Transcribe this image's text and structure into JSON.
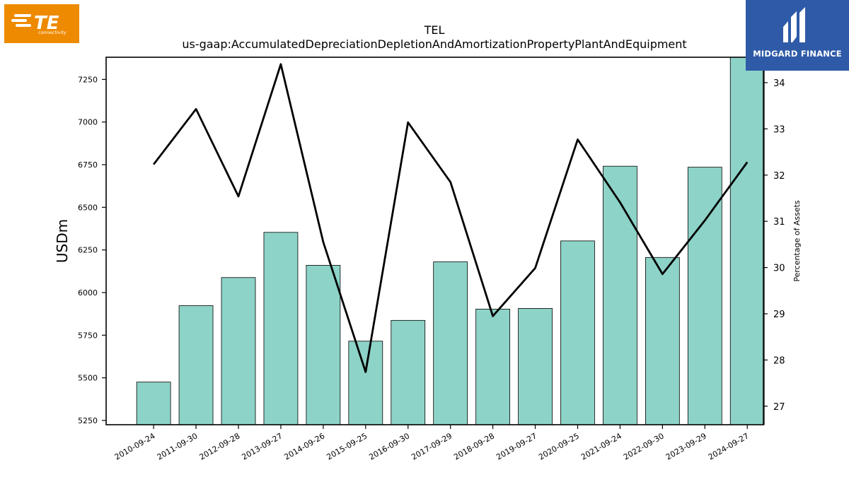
{
  "logos": {
    "left": {
      "text": "TE",
      "sub": "connectivity",
      "color": "#ee8a00"
    },
    "right": {
      "text": "MIDGARD FINANCE",
      "color": "#2f5aa8"
    }
  },
  "chart_data": {
    "type": "bar",
    "title": "TEL",
    "subtitle": "us-gaap:AccumulatedDepreciationDepletionAndAmortizationPropertyPlantAndEquipment",
    "ylabel": "USDm",
    "y2label": "Percentage of Assets",
    "categories": [
      "2010-09-24",
      "2011-09-30",
      "2012-09-28",
      "2013-09-27",
      "2014-09-26",
      "2015-09-25",
      "2016-09-30",
      "2017-09-29",
      "2018-09-28",
      "2019-09-27",
      "2020-09-25",
      "2021-09-24",
      "2022-09-30",
      "2023-09-29",
      "2024-09-27"
    ],
    "ylim": [
      5225,
      7380
    ],
    "y2lim": [
      26.6,
      34.55
    ],
    "yticks": [
      5250,
      5500,
      5750,
      6000,
      6250,
      6500,
      6750,
      7000,
      7250
    ],
    "y2ticks": [
      27,
      28,
      29,
      30,
      31,
      32,
      33,
      34
    ],
    "bar_color": "#8dd3c7",
    "line_color": "#000000",
    "series": [
      {
        "type": "bar",
        "axis": "left",
        "values": [
          5475,
          5923,
          6088,
          6353,
          6160,
          5715,
          5837,
          6180,
          5903,
          5907,
          6303,
          6741,
          6206,
          6735,
          7390
        ]
      },
      {
        "type": "line",
        "axis": "right",
        "values": [
          32.23,
          33.43,
          31.54,
          34.4,
          30.55,
          27.74,
          33.14,
          31.85,
          28.95,
          29.99,
          32.77,
          31.41,
          29.86,
          31.02,
          32.28
        ]
      }
    ]
  }
}
